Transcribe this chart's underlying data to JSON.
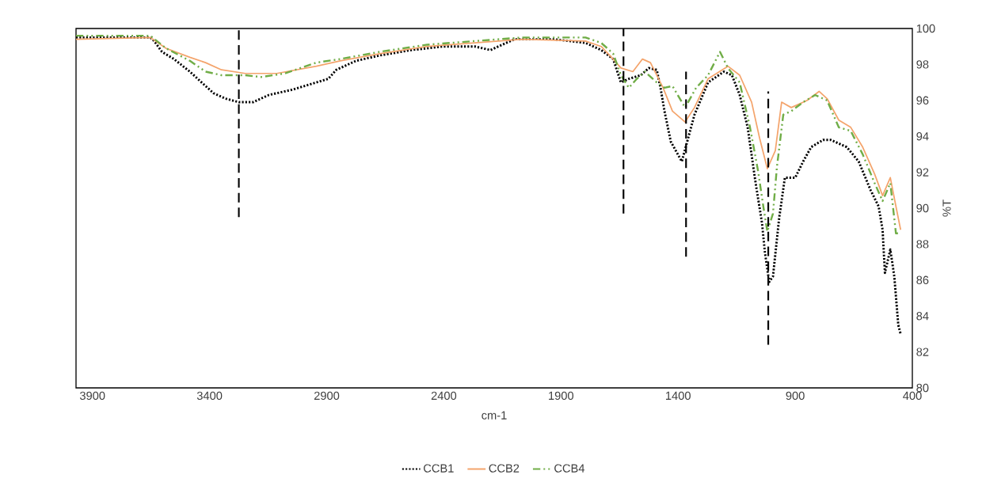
{
  "chart_data": {
    "type": "line",
    "xlabel": "cm-1",
    "ylabel": "%T",
    "xlim": [
      3970,
      400
    ],
    "xticks": [
      3900,
      3400,
      2900,
      2400,
      1900,
      1400,
      900,
      400
    ],
    "ylim": [
      80,
      100
    ],
    "yticks": [
      80,
      82,
      84,
      86,
      88,
      90,
      92,
      94,
      96,
      98,
      100
    ],
    "legend": "bottom",
    "series": [
      {
        "name": "CCB1",
        "color": "#000000",
        "line_style": "dotted",
        "x": [
          3970,
          3653,
          3636,
          3603,
          3552,
          3484,
          3434,
          3383,
          3332,
          3275,
          3214,
          3147,
          3045,
          2944,
          2893,
          2859,
          2775,
          2674,
          2539,
          2403,
          2268,
          2201,
          2099,
          1931,
          1795,
          1728,
          1677,
          1644,
          1610,
          1559,
          1525,
          1491,
          1475,
          1458,
          1431,
          1397,
          1384,
          1357,
          1330,
          1272,
          1204,
          1170,
          1137,
          1103,
          1069,
          1042,
          1029,
          1011,
          995,
          968,
          944,
          900,
          866,
          832,
          781,
          748,
          680,
          629,
          578,
          544,
          527,
          517,
          494,
          477,
          460,
          450
        ],
        "values": [
          99.5,
          99.5,
          99.3,
          98.7,
          98.3,
          97.6,
          97.0,
          96.4,
          96.1,
          95.9,
          95.9,
          96.3,
          96.6,
          97.0,
          97.2,
          97.7,
          98.2,
          98.5,
          98.8,
          99.0,
          99.0,
          98.8,
          99.4,
          99.4,
          99.2,
          98.8,
          98.3,
          97.0,
          97.2,
          97.4,
          97.8,
          97.7,
          96.7,
          95.4,
          93.7,
          92.9,
          92.6,
          93.9,
          95.2,
          97.0,
          97.6,
          97.4,
          96.3,
          94.5,
          91.4,
          89.2,
          87.5,
          85.9,
          86.2,
          89.5,
          91.7,
          91.7,
          92.6,
          93.4,
          93.8,
          93.8,
          93.4,
          92.6,
          91.0,
          90.1,
          88.8,
          86.4,
          87.7,
          86.2,
          83.5,
          83.0
        ]
      },
      {
        "name": "CCB2",
        "color": "#f4a46c",
        "line_style": "solid",
        "x": [
          3970,
          3653,
          3586,
          3484,
          3417,
          3349,
          3248,
          3113,
          2944,
          2842,
          2674,
          2471,
          2268,
          2065,
          1795,
          1728,
          1677,
          1644,
          1593,
          1552,
          1518,
          1464,
          1424,
          1370,
          1330,
          1272,
          1187,
          1137,
          1086,
          1052,
          1019,
          985,
          958,
          917,
          883,
          849,
          798,
          764,
          714,
          663,
          612,
          561,
          527,
          494,
          470,
          450
        ],
        "values": [
          99.4,
          99.5,
          98.9,
          98.4,
          98.1,
          97.7,
          97.5,
          97.5,
          97.9,
          98.2,
          98.6,
          99.0,
          99.2,
          99.4,
          99.3,
          99.0,
          98.3,
          97.8,
          97.6,
          98.3,
          98.1,
          96.7,
          95.4,
          94.8,
          95.6,
          97.2,
          97.9,
          97.4,
          95.9,
          93.9,
          92.2,
          93.2,
          95.9,
          95.6,
          95.8,
          96.0,
          96.5,
          96.1,
          94.9,
          94.5,
          93.4,
          91.9,
          90.7,
          91.7,
          90.1,
          88.8
        ]
      },
      {
        "name": "CCB4",
        "color": "#70ad47",
        "line_style": "dashdot",
        "x": [
          3970,
          3653,
          3586,
          3484,
          3417,
          3349,
          3248,
          3180,
          3079,
          2944,
          2842,
          2674,
          2471,
          2268,
          2065,
          1795,
          1728,
          1677,
          1644,
          1610,
          1576,
          1542,
          1491,
          1458,
          1424,
          1370,
          1323,
          1272,
          1221,
          1187,
          1137,
          1093,
          1059,
          1035,
          1019,
          995,
          978,
          951,
          917,
          866,
          815,
          764,
          714,
          663,
          612,
          561,
          527,
          494,
          470,
          450
        ],
        "values": [
          99.6,
          99.6,
          98.9,
          98.2,
          97.6,
          97.4,
          97.4,
          97.3,
          97.5,
          98.1,
          98.3,
          98.7,
          99.1,
          99.3,
          99.5,
          99.5,
          99.2,
          98.6,
          97.4,
          96.7,
          97.2,
          97.6,
          97.0,
          96.7,
          96.8,
          95.6,
          96.7,
          97.4,
          98.7,
          97.8,
          97.0,
          94.5,
          92.1,
          90.0,
          88.7,
          89.7,
          92.3,
          95.2,
          95.4,
          95.9,
          96.3,
          96.0,
          94.5,
          94.3,
          93.0,
          91.4,
          90.4,
          91.4,
          88.6,
          88.6
        ]
      },
      {
        "type": "line",
        "color": "#000000",
        "line_style": "dashed",
        "x": [
          3275,
          3275
        ],
        "values": [
          89.5,
          100
        ]
      },
      {
        "type": "line",
        "color": "#000000",
        "line_style": "dashed",
        "x": [
          1633,
          1633
        ],
        "values": [
          89.7,
          100
        ]
      },
      {
        "type": "line",
        "color": "#000000",
        "line_style": "dashed",
        "x": [
          1366,
          1366
        ],
        "values": [
          87.3,
          97.6
        ]
      },
      {
        "type": "line",
        "color": "#000000",
        "line_style": "dashed",
        "x": [
          1015,
          1015
        ],
        "values": [
          82.4,
          96.5
        ]
      }
    ]
  }
}
